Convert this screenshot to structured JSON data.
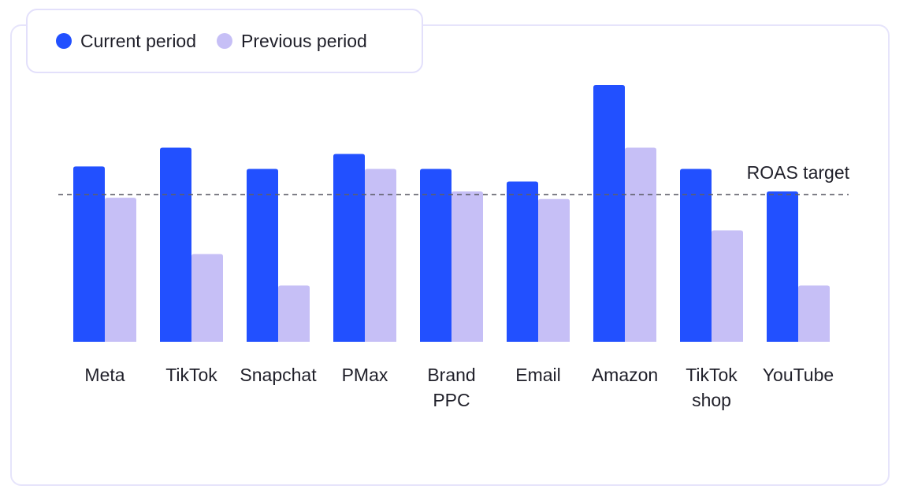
{
  "chart_data": {
    "type": "bar",
    "categories": [
      [
        "Meta"
      ],
      [
        "TikTok"
      ],
      [
        "Snapchat"
      ],
      [
        "PMax"
      ],
      [
        "Brand",
        "PPC"
      ],
      [
        "Email"
      ],
      [
        "Amazon"
      ],
      [
        "TikTok",
        "shop"
      ],
      [
        "YouTube"
      ]
    ],
    "series": [
      {
        "name": "Current period",
        "color": "#2250ff",
        "values": [
          2.8,
          3.1,
          2.76,
          3.0,
          2.76,
          2.56,
          4.1,
          2.76,
          2.4
        ]
      },
      {
        "name": "Previous period",
        "color": "#c6bff6",
        "values": [
          2.3,
          1.4,
          0.9,
          2.76,
          2.4,
          2.28,
          3.1,
          1.78,
          0.9
        ]
      }
    ],
    "reference_line": {
      "label": "ROAS target",
      "value": 2.35
    },
    "ylim": [
      0,
      4.1
    ],
    "y_axis_visible": false,
    "grid": false
  }
}
